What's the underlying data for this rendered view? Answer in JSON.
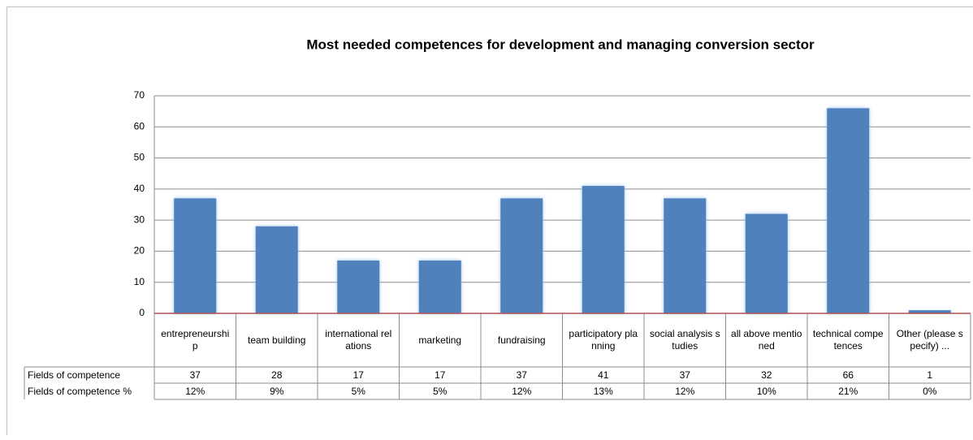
{
  "chart_data": {
    "type": "bar",
    "title": "Most needed competences for development and managing conversion sector",
    "categories": [
      "entrepreneurship",
      "team building",
      "international relations",
      "marketing",
      "fundraising",
      "participatory planning",
      "social analysis studies",
      "all above mentioned",
      "technical competences",
      "Other (please specify) ..."
    ],
    "series": [
      {
        "name": "Fields of competence",
        "color": "#4f81bd",
        "values": [
          37,
          28,
          17,
          17,
          37,
          41,
          37,
          32,
          66,
          1
        ]
      }
    ],
    "percent_row": {
      "name": "Fields of competence %",
      "values": [
        "12%",
        "9%",
        "5%",
        "5%",
        "12%",
        "13%",
        "12%",
        "10%",
        "21%",
        "0%"
      ]
    },
    "ylim": [
      0,
      70
    ],
    "yticks": [
      0,
      10,
      20,
      30,
      40,
      50,
      60,
      70
    ],
    "grid": true
  }
}
